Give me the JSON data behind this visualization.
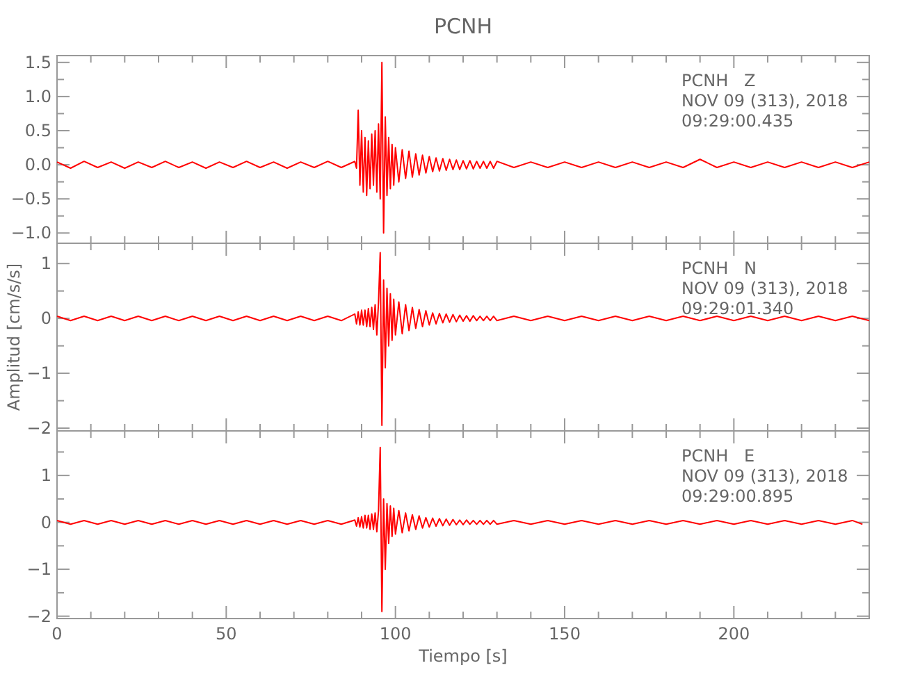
{
  "chart_data": [
    {
      "type": "line",
      "title": "PCNH",
      "annotations": [
        "PCNH   Z",
        "NOV 09 (313), 2018",
        "09:29:00.435"
      ],
      "tick_labels": "y",
      "xlim": [
        0,
        240
      ],
      "ylim": [
        -1.15,
        1.6
      ],
      "xticks": [
        0,
        {
          "value": 10,
          "label": null
        },
        {
          "value": 20,
          "label": null
        },
        {
          "value": 30,
          "label": null
        },
        {
          "value": 40,
          "label": null
        },
        50,
        {
          "value": 60,
          "label": null
        },
        {
          "value": 70,
          "label": null
        },
        {
          "value": 80,
          "label": null
        },
        {
          "value": 90,
          "label": null
        },
        100,
        {
          "value": 110,
          "label": null
        },
        {
          "value": 120,
          "label": null
        },
        {
          "value": 130,
          "label": null
        },
        {
          "value": 140,
          "label": null
        },
        150,
        {
          "value": 160,
          "label": null
        },
        {
          "value": 170,
          "label": null
        },
        {
          "value": 180,
          "label": null
        },
        {
          "value": 190,
          "label": null
        },
        200,
        {
          "value": 210,
          "label": null
        },
        {
          "value": 220,
          "label": null
        },
        {
          "value": 230,
          "label": null
        }
      ],
      "yticks": [
        {
          "value": -1,
          "label": "−1.0"
        },
        {
          "value": -0.75,
          "label": null
        },
        {
          "value": -0.5,
          "label": "−0.5"
        },
        {
          "value": -0.25,
          "label": null
        },
        {
          "value": 0,
          "label": "0.0"
        },
        {
          "value": 0.25,
          "label": null
        },
        {
          "value": 0.5,
          "label": "0.5"
        },
        {
          "value": 0.75,
          "label": null
        },
        {
          "value": 1,
          "label": "1.0"
        },
        {
          "value": 1.25,
          "label": null
        },
        {
          "value": 1.5,
          "label": "1.5"
        }
      ],
      "x": [
        0,
        4,
        8,
        12,
        16,
        20,
        24,
        28,
        32,
        36,
        40,
        44,
        48,
        52,
        56,
        60,
        64,
        68,
        72,
        76,
        80,
        84,
        88,
        88.5,
        89,
        89.5,
        90,
        90.5,
        91,
        91.5,
        92,
        92.5,
        93,
        93.5,
        94,
        94.5,
        95,
        95.5,
        96,
        96.5,
        97,
        97.5,
        98,
        98.5,
        99,
        99.5,
        100,
        101,
        102,
        103,
        104,
        105,
        106,
        107,
        108,
        109,
        110,
        111,
        112,
        113,
        114,
        115,
        116,
        117,
        118,
        119,
        120,
        121,
        122,
        123,
        124,
        125,
        126,
        127,
        128,
        129,
        130,
        135,
        140,
        145,
        150,
        155,
        160,
        165,
        170,
        175,
        180,
        185,
        190,
        195,
        200,
        205,
        210,
        215,
        220,
        225,
        230,
        235,
        240
      ],
      "series": [
        {
          "color": "#ff0000",
          "values": [
            0.04,
            -0.05,
            0.05,
            -0.04,
            0.04,
            -0.05,
            0.04,
            -0.04,
            0.05,
            -0.04,
            0.04,
            -0.05,
            0.04,
            -0.04,
            0.05,
            -0.04,
            0.04,
            -0.05,
            0.04,
            -0.04,
            0.05,
            -0.04,
            0.05,
            -0.05,
            0.8,
            -0.3,
            0.5,
            -0.4,
            0.4,
            -0.45,
            0.35,
            -0.35,
            0.45,
            -0.3,
            0.5,
            -0.4,
            0.6,
            -0.5,
            1.5,
            -1.0,
            0.7,
            -0.45,
            0.4,
            -0.35,
            0.3,
            -0.3,
            0.25,
            -0.25,
            0.22,
            -0.2,
            0.2,
            -0.18,
            0.16,
            -0.15,
            0.14,
            -0.12,
            0.12,
            -0.1,
            0.1,
            -0.09,
            0.09,
            -0.08,
            0.08,
            -0.07,
            0.07,
            -0.07,
            0.06,
            -0.06,
            0.06,
            -0.06,
            0.05,
            -0.05,
            0.05,
            -0.05,
            0.05,
            -0.05,
            0.05,
            -0.04,
            0.04,
            -0.04,
            0.04,
            -0.04,
            0.04,
            -0.04,
            0.04,
            -0.04,
            0.04,
            -0.04,
            0.08,
            -0.04,
            0.04,
            -0.04,
            0.04,
            -0.04,
            0.04,
            -0.04,
            0.04,
            -0.04,
            0.04
          ]
        }
      ]
    },
    {
      "type": "line",
      "ylabel": "Amplitud [cm/s/s]",
      "annotations": [
        "PCNH   N",
        "NOV 09 (313), 2018",
        "09:29:01.340"
      ],
      "tick_labels": "y",
      "xlim": [
        0,
        240
      ],
      "ylim": [
        -2.05,
        1.37
      ],
      "xticks": [
        0,
        {
          "value": 10,
          "label": null
        },
        {
          "value": 20,
          "label": null
        },
        {
          "value": 30,
          "label": null
        },
        {
          "value": 40,
          "label": null
        },
        50,
        {
          "value": 60,
          "label": null
        },
        {
          "value": 70,
          "label": null
        },
        {
          "value": 80,
          "label": null
        },
        {
          "value": 90,
          "label": null
        },
        100,
        {
          "value": 110,
          "label": null
        },
        {
          "value": 120,
          "label": null
        },
        {
          "value": 130,
          "label": null
        },
        {
          "value": 140,
          "label": null
        },
        150,
        {
          "value": 160,
          "label": null
        },
        {
          "value": 170,
          "label": null
        },
        {
          "value": 180,
          "label": null
        },
        {
          "value": 190,
          "label": null
        },
        200,
        {
          "value": 210,
          "label": null
        },
        {
          "value": 220,
          "label": null
        },
        {
          "value": 230,
          "label": null
        }
      ],
      "yticks": [
        -2,
        {
          "value": -1.5,
          "label": null
        },
        -1,
        {
          "value": -0.5,
          "label": null
        },
        0,
        {
          "value": 0.5,
          "label": null
        },
        1
      ],
      "x": [
        0,
        4,
        8,
        12,
        16,
        20,
        24,
        28,
        32,
        36,
        40,
        44,
        48,
        52,
        56,
        60,
        64,
        68,
        72,
        76,
        80,
        84,
        88,
        88.5,
        89,
        89.5,
        90,
        90.5,
        91,
        91.5,
        92,
        92.5,
        93,
        93.5,
        94,
        94.5,
        95,
        95.5,
        96,
        96.5,
        97,
        97.5,
        98,
        98.5,
        99,
        99.5,
        100,
        101,
        102,
        103,
        104,
        105,
        106,
        107,
        108,
        109,
        110,
        111,
        112,
        113,
        114,
        115,
        116,
        117,
        118,
        119,
        120,
        121,
        122,
        123,
        124,
        125,
        126,
        127,
        128,
        129,
        130,
        135,
        140,
        145,
        150,
        155,
        160,
        165,
        170,
        175,
        180,
        185,
        190,
        195,
        200,
        205,
        210,
        215,
        220,
        225,
        230,
        235,
        240
      ],
      "series": [
        {
          "color": "#ff0000",
          "values": [
            0.04,
            -0.04,
            0.04,
            -0.04,
            0.04,
            -0.04,
            0.04,
            -0.04,
            0.04,
            -0.04,
            0.04,
            -0.04,
            0.04,
            -0.04,
            0.04,
            -0.04,
            0.04,
            -0.04,
            0.04,
            -0.04,
            0.04,
            -0.04,
            0.08,
            -0.1,
            0.12,
            -0.12,
            0.15,
            -0.12,
            0.15,
            -0.15,
            0.18,
            -0.15,
            0.2,
            -0.2,
            0.25,
            -0.3,
            0.3,
            1.2,
            -1.95,
            0.7,
            -0.9,
            0.55,
            -0.5,
            0.45,
            -0.4,
            0.35,
            -0.3,
            0.3,
            -0.28,
            0.25,
            -0.22,
            0.2,
            -0.18,
            0.16,
            -0.15,
            0.14,
            -0.12,
            0.1,
            -0.1,
            0.09,
            -0.08,
            0.08,
            -0.07,
            0.07,
            -0.06,
            0.06,
            -0.05,
            0.05,
            -0.05,
            0.05,
            -0.04,
            0.04,
            -0.04,
            0.04,
            -0.04,
            0.04,
            -0.04,
            0.04,
            -0.04,
            0.04,
            -0.04,
            0.04,
            -0.04,
            0.04,
            -0.04,
            0.04,
            -0.04,
            0.04,
            -0.04,
            0.04,
            -0.04,
            0.04,
            -0.04,
            0.04,
            -0.04,
            0.04,
            -0.04,
            0.04,
            -0.04
          ]
        }
      ]
    },
    {
      "type": "line",
      "xlabel": "Tiempo [s]",
      "annotations": [
        "PCNH   E",
        "NOV 09 (313), 2018",
        "09:29:00.895"
      ],
      "xlim": [
        0,
        240
      ],
      "ylim": [
        -2.05,
        1.95
      ],
      "xticks": [
        0,
        {
          "value": 10,
          "label": null
        },
        {
          "value": 20,
          "label": null
        },
        {
          "value": 30,
          "label": null
        },
        {
          "value": 40,
          "label": null
        },
        50,
        {
          "value": 60,
          "label": null
        },
        {
          "value": 70,
          "label": null
        },
        {
          "value": 80,
          "label": null
        },
        {
          "value": 90,
          "label": null
        },
        100,
        {
          "value": 110,
          "label": null
        },
        {
          "value": 120,
          "label": null
        },
        {
          "value": 130,
          "label": null
        },
        {
          "value": 140,
          "label": null
        },
        150,
        {
          "value": 160,
          "label": null
        },
        {
          "value": 170,
          "label": null
        },
        {
          "value": 180,
          "label": null
        },
        {
          "value": 190,
          "label": null
        },
        200,
        {
          "value": 210,
          "label": null
        },
        {
          "value": 220,
          "label": null
        },
        {
          "value": 230,
          "label": null
        }
      ],
      "yticks": [
        -2,
        {
          "value": -1.5,
          "label": null
        },
        -1,
        {
          "value": -0.5,
          "label": null
        },
        0,
        {
          "value": 0.5,
          "label": null
        },
        1,
        {
          "value": 1.5,
          "label": null
        }
      ],
      "x": [
        0,
        4,
        8,
        12,
        16,
        20,
        24,
        28,
        32,
        36,
        40,
        44,
        48,
        52,
        56,
        60,
        64,
        68,
        72,
        76,
        80,
        84,
        88,
        88.5,
        89,
        89.5,
        90,
        90.5,
        91,
        91.5,
        92,
        92.5,
        93,
        93.5,
        94,
        94.5,
        95,
        95.5,
        96,
        96.5,
        97,
        97.5,
        98,
        98.5,
        99,
        99.5,
        100,
        101,
        102,
        103,
        104,
        105,
        106,
        107,
        108,
        109,
        110,
        111,
        112,
        113,
        114,
        115,
        116,
        117,
        118,
        119,
        120,
        121,
        122,
        123,
        124,
        125,
        126,
        127,
        128,
        129,
        130,
        135,
        140,
        145,
        150,
        155,
        160,
        165,
        170,
        175,
        180,
        185,
        190,
        195,
        200,
        205,
        210,
        215,
        220,
        225,
        230,
        235,
        238
      ],
      "series": [
        {
          "color": "#ff0000",
          "values": [
            0.04,
            -0.04,
            0.04,
            -0.04,
            0.04,
            -0.04,
            0.04,
            -0.04,
            0.04,
            -0.04,
            0.04,
            -0.04,
            0.04,
            -0.04,
            0.04,
            -0.04,
            0.04,
            -0.04,
            0.04,
            -0.04,
            0.04,
            -0.04,
            0.05,
            -0.08,
            0.1,
            -0.1,
            0.12,
            -0.12,
            0.15,
            -0.12,
            0.15,
            -0.15,
            0.18,
            -0.15,
            0.2,
            -0.2,
            0.25,
            1.6,
            -1.9,
            0.5,
            -1.0,
            0.4,
            -0.45,
            0.35,
            -0.3,
            0.3,
            -0.25,
            0.25,
            -0.22,
            0.2,
            -0.18,
            0.16,
            -0.15,
            0.14,
            -0.12,
            0.1,
            -0.1,
            0.09,
            -0.08,
            0.08,
            -0.07,
            0.07,
            -0.06,
            0.06,
            -0.05,
            0.05,
            -0.05,
            0.05,
            -0.04,
            0.04,
            -0.04,
            0.04,
            -0.04,
            0.04,
            -0.04,
            0.04,
            -0.04,
            0.04,
            -0.04,
            0.04,
            -0.04,
            0.04,
            -0.04,
            0.04,
            -0.04,
            0.04,
            -0.04,
            0.04,
            -0.04,
            0.04,
            -0.04,
            0.04,
            -0.04,
            0.04,
            -0.04,
            0.04,
            -0.04,
            0.04,
            -0.04
          ]
        }
      ]
    }
  ]
}
